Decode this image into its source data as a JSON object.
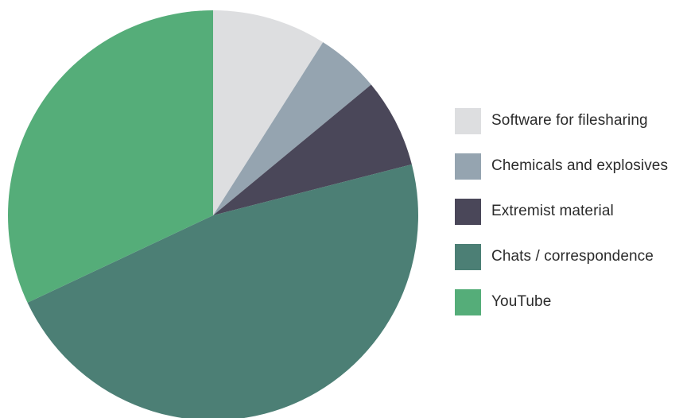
{
  "chart_data": {
    "type": "pie",
    "title": "",
    "legend_position": "right",
    "slices": [
      {
        "label": "Software for filesharing",
        "value": 9,
        "color": "#dddee0"
      },
      {
        "label": "Chemicals and explosives",
        "value": 5,
        "color": "#95a4b0"
      },
      {
        "label": "Extremist material",
        "value": 7,
        "color": "#4a4759"
      },
      {
        "label": "Chats / correspondence",
        "value": 47,
        "color": "#4c7f75"
      },
      {
        "label": "YouTube",
        "value": 32,
        "color": "#55ad79"
      }
    ]
  }
}
